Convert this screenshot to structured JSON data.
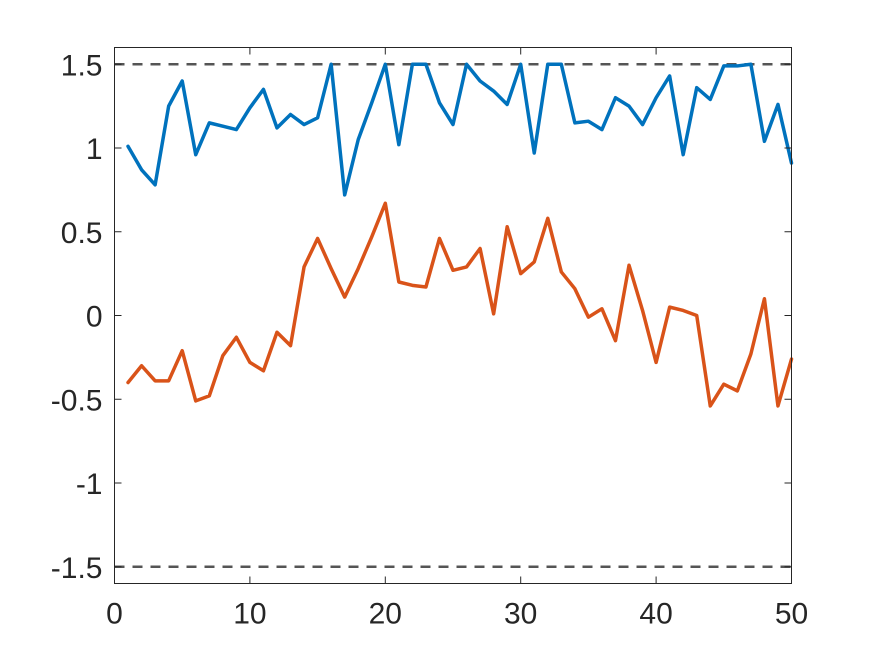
{
  "chart_data": {
    "type": "line",
    "title": "",
    "xlabel": "",
    "ylabel": "",
    "xlim": [
      0,
      50
    ],
    "ylim": [
      -1.6,
      1.6
    ],
    "x_ticks": [
      0,
      10,
      20,
      30,
      40,
      50
    ],
    "x_tick_labels": [
      "0",
      "10",
      "20",
      "30",
      "40",
      "50"
    ],
    "y_ticks": [
      1.5,
      1,
      0.5,
      0,
      -0.5,
      -1,
      -1.5
    ],
    "y_tick_labels": [
      "1.5",
      "1",
      "0.5",
      "0",
      "-0.5",
      "-1",
      "-1.5"
    ],
    "grid": false,
    "reference_lines": [
      {
        "y": 1.5,
        "style": "dashed",
        "color": "#555555"
      },
      {
        "y": -1.5,
        "style": "dashed",
        "color": "#555555"
      }
    ],
    "x": [
      1,
      2,
      3,
      4,
      5,
      6,
      7,
      8,
      9,
      10,
      11,
      12,
      13,
      14,
      15,
      16,
      17,
      18,
      19,
      20,
      21,
      22,
      23,
      24,
      25,
      26,
      27,
      28,
      29,
      30,
      31,
      32,
      33,
      34,
      35,
      36,
      37,
      38,
      39,
      40,
      41,
      42,
      43,
      44,
      45,
      46,
      47,
      48,
      49,
      50
    ],
    "series": [
      {
        "color": "#0072BD",
        "values": [
          1.01,
          0.87,
          0.78,
          1.25,
          1.4,
          0.96,
          1.15,
          1.13,
          1.11,
          1.24,
          1.35,
          1.12,
          1.2,
          1.14,
          1.18,
          1.5,
          0.72,
          1.05,
          1.27,
          1.5,
          1.02,
          1.5,
          1.5,
          1.27,
          1.14,
          1.5,
          1.4,
          1.34,
          1.26,
          1.5,
          0.97,
          1.5,
          1.5,
          1.15,
          1.16,
          1.11,
          1.3,
          1.25,
          1.14,
          1.3,
          1.43,
          0.96,
          1.36,
          1.29,
          1.49,
          1.49,
          1.5,
          1.04,
          1.26,
          0.91
        ]
      },
      {
        "color": "#D95319",
        "values": [
          -0.4,
          -0.3,
          -0.39,
          -0.39,
          -0.21,
          -0.51,
          -0.48,
          -0.24,
          -0.13,
          -0.28,
          -0.33,
          -0.1,
          -0.18,
          0.29,
          0.46,
          0.28,
          0.11,
          0.28,
          0.47,
          0.67,
          0.2,
          0.18,
          0.17,
          0.46,
          0.27,
          0.29,
          0.4,
          0.01,
          0.53,
          0.25,
          0.32,
          0.58,
          0.26,
          0.16,
          -0.01,
          0.04,
          -0.15,
          0.3,
          0.03,
          -0.28,
          0.05,
          0.03,
          0.0,
          -0.54,
          -0.41,
          -0.45,
          -0.23,
          0.1,
          -0.54,
          -0.26
        ]
      }
    ]
  }
}
